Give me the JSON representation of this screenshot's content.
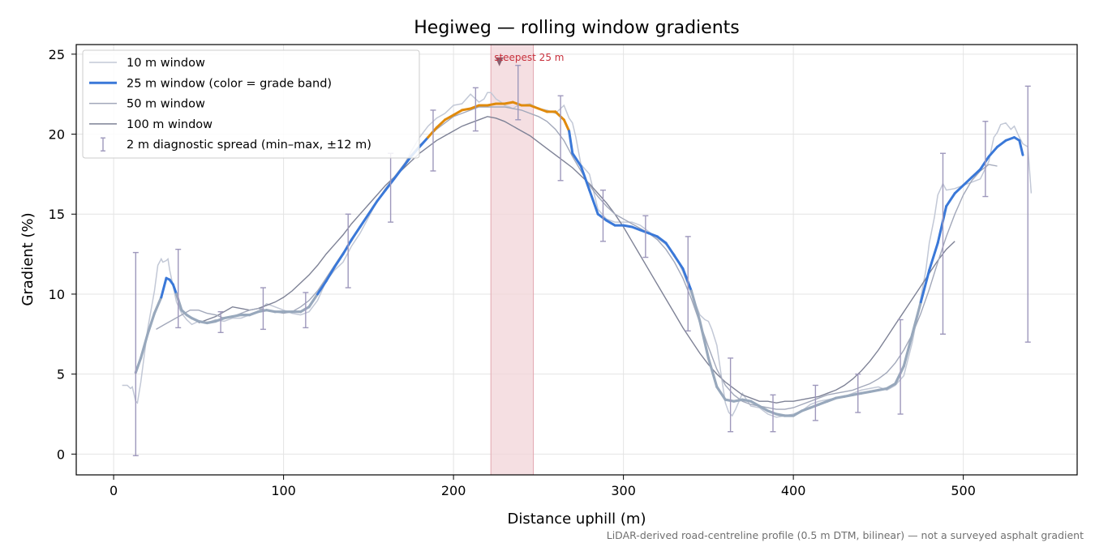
{
  "chart_data": {
    "type": "line",
    "title": "Hegiweg — rolling window gradients",
    "xlabel": "Distance uphill (m)",
    "ylabel": "Gradient (%)",
    "xlim": [
      -22,
      567
    ],
    "ylim": [
      -1.3,
      25.6
    ],
    "x_ticks": [
      0,
      100,
      200,
      300,
      400,
      500
    ],
    "y_ticks": [
      0,
      5,
      10,
      15,
      20,
      25
    ],
    "grid": true,
    "legend_placement": "upper-left",
    "footnote": "LiDAR-derived road-centreline profile (0.5 m DTM, bilinear) — not a surveyed asphalt gradient",
    "steepest_span": {
      "x0": 222,
      "x1": 247,
      "label": "steepest 25 m",
      "marker_x": 227,
      "marker_y": 24.5
    },
    "colors": {
      "w10": "#c2c8d6",
      "w25_steep": "#e08a0c",
      "w25_moderate": "#3a78d8",
      "w25_easy": "#98a8bc",
      "w50": "#a2a8ba",
      "w100": "#7e8296",
      "errorbar": "#9e98bc",
      "highlight": "#f2d4d8",
      "annotation": "#c8303c"
    },
    "series": [
      {
        "name": "10 m window",
        "x": [
          5,
          8,
          10,
          11,
          13,
          14,
          16,
          20,
          24,
          26,
          28,
          29,
          31,
          32,
          33,
          35,
          37,
          40,
          43,
          46,
          50,
          55,
          60,
          65,
          70,
          75,
          80,
          85,
          90,
          95,
          100,
          105,
          110,
          115,
          120,
          125,
          130,
          135,
          140,
          145,
          150,
          155,
          160,
          165,
          170,
          175,
          180,
          185,
          190,
          195,
          200,
          205,
          210,
          215,
          218,
          220,
          222,
          225,
          228,
          230,
          233,
          235,
          238,
          240,
          245,
          250,
          255,
          260,
          265,
          268,
          270,
          272,
          275,
          280,
          285,
          290,
          295,
          300,
          305,
          310,
          315,
          320,
          325,
          330,
          335,
          340,
          342,
          345,
          348,
          350,
          352,
          355,
          358,
          360,
          362,
          364,
          366,
          370,
          375,
          380,
          385,
          390,
          395,
          400,
          405,
          410,
          415,
          420,
          425,
          430,
          435,
          440,
          445,
          450,
          455,
          460,
          465,
          470,
          475,
          478,
          480,
          483,
          485,
          488,
          490,
          495,
          500,
          505,
          510,
          515,
          518,
          520,
          522,
          525,
          528,
          530,
          533,
          535,
          538,
          540
        ],
        "y": [
          4.3,
          4.3,
          4.1,
          4.2,
          3.3,
          3.2,
          4.5,
          7.8,
          10.2,
          11.8,
          12.2,
          12.0,
          12.1,
          12.2,
          11.5,
          10.5,
          9.5,
          8.8,
          8.4,
          8.1,
          8.3,
          8.2,
          8.4,
          8.3,
          8.5,
          8.5,
          8.7,
          8.9,
          9.4,
          9.2,
          9.0,
          8.8,
          8.7,
          8.9,
          9.6,
          10.8,
          11.5,
          12.0,
          13.0,
          13.8,
          14.8,
          15.8,
          16.6,
          17.2,
          17.9,
          18.9,
          19.8,
          20.5,
          21.0,
          21.3,
          21.8,
          21.9,
          22.5,
          22.0,
          22.2,
          22.6,
          22.6,
          22.2,
          22.0,
          21.8,
          21.7,
          21.6,
          21.8,
          21.8,
          21.9,
          21.6,
          21.5,
          21.3,
          21.8,
          21.0,
          20.7,
          19.8,
          18.1,
          17.5,
          15.3,
          14.7,
          14.5,
          14.5,
          14.5,
          14.3,
          13.9,
          13.5,
          13.1,
          12.5,
          11.4,
          10.0,
          9.5,
          8.7,
          8.4,
          8.3,
          7.8,
          6.8,
          4.6,
          3.2,
          2.6,
          2.4,
          2.8,
          3.8,
          3.0,
          2.9,
          2.5,
          2.3,
          2.4,
          2.5,
          2.7,
          3.1,
          3.3,
          3.4,
          3.5,
          3.6,
          3.8,
          4.0,
          4.1,
          4.2,
          4.0,
          4.3,
          4.9,
          7.0,
          9.8,
          11.5,
          13.2,
          14.8,
          16.2,
          16.9,
          16.5,
          16.6,
          16.8,
          17.0,
          17.2,
          18.3,
          19.8,
          20.1,
          20.6,
          20.7,
          20.3,
          20.5,
          19.8,
          19.4,
          19.2,
          16.3
        ]
      },
      {
        "name": "25 m window (color = grade band)",
        "x": [
          13,
          16,
          20,
          24,
          28,
          31,
          33,
          35,
          37,
          40,
          43,
          46,
          50,
          55,
          60,
          65,
          70,
          75,
          80,
          85,
          90,
          95,
          100,
          105,
          110,
          115,
          120,
          125,
          130,
          135,
          140,
          145,
          150,
          155,
          160,
          165,
          170,
          175,
          180,
          185,
          190,
          195,
          200,
          205,
          210,
          215,
          220,
          225,
          230,
          235,
          240,
          245,
          250,
          255,
          260,
          265,
          268,
          270,
          275,
          280,
          285,
          290,
          295,
          300,
          305,
          310,
          315,
          320,
          325,
          330,
          335,
          340,
          345,
          350,
          355,
          360,
          365,
          370,
          375,
          380,
          385,
          390,
          395,
          400,
          405,
          410,
          415,
          420,
          425,
          430,
          435,
          440,
          445,
          450,
          455,
          460,
          465,
          470,
          475,
          480,
          485,
          490,
          495,
          500,
          505,
          510,
          515,
          520,
          525,
          530,
          533,
          535
        ],
        "y": [
          5.1,
          6.0,
          7.5,
          8.8,
          9.8,
          11.0,
          10.9,
          10.6,
          10.0,
          9.0,
          8.7,
          8.5,
          8.3,
          8.2,
          8.3,
          8.5,
          8.6,
          8.7,
          8.7,
          8.9,
          9.0,
          8.9,
          8.9,
          8.9,
          8.9,
          9.2,
          10.0,
          10.8,
          11.7,
          12.5,
          13.4,
          14.2,
          15.0,
          15.8,
          16.5,
          17.2,
          17.9,
          18.6,
          19.2,
          19.8,
          20.4,
          20.9,
          21.2,
          21.5,
          21.6,
          21.8,
          21.8,
          21.9,
          21.9,
          22.0,
          21.8,
          21.8,
          21.6,
          21.4,
          21.4,
          20.9,
          20.2,
          18.8,
          18.0,
          16.5,
          15.0,
          14.6,
          14.3,
          14.3,
          14.2,
          14.0,
          13.8,
          13.6,
          13.2,
          12.4,
          11.6,
          10.2,
          8.3,
          6.0,
          4.2,
          3.4,
          3.3,
          3.4,
          3.3,
          3.0,
          2.7,
          2.5,
          2.4,
          2.4,
          2.7,
          2.9,
          3.1,
          3.3,
          3.5,
          3.6,
          3.7,
          3.8,
          3.9,
          4.0,
          4.1,
          4.4,
          5.5,
          7.5,
          9.5,
          11.5,
          13.2,
          15.5,
          16.3,
          16.8,
          17.3,
          17.8,
          18.6,
          19.2,
          19.6,
          19.8,
          19.6,
          18.7
        ],
        "bands": [
          {
            "from": 0,
            "to": 36,
            "band": "moderate"
          },
          {
            "from": 37,
            "to": 61,
            "band": "moderate"
          }
        ]
      },
      {
        "name": "50 m window",
        "x": [
          25,
          30,
          35,
          40,
          45,
          50,
          55,
          60,
          65,
          70,
          75,
          80,
          85,
          90,
          95,
          100,
          105,
          110,
          115,
          120,
          125,
          130,
          135,
          140,
          145,
          150,
          155,
          160,
          165,
          170,
          175,
          180,
          185,
          190,
          195,
          200,
          205,
          210,
          215,
          220,
          225,
          230,
          235,
          240,
          245,
          250,
          255,
          260,
          265,
          270,
          275,
          280,
          285,
          290,
          295,
          300,
          305,
          310,
          315,
          320,
          325,
          330,
          335,
          340,
          345,
          350,
          355,
          360,
          365,
          370,
          375,
          380,
          385,
          390,
          395,
          400,
          405,
          410,
          415,
          420,
          425,
          430,
          435,
          440,
          445,
          450,
          455,
          460,
          465,
          470,
          475,
          480,
          485,
          490,
          495,
          500,
          505,
          510,
          515,
          520
        ],
        "y": [
          7.8,
          8.1,
          8.4,
          8.7,
          9.0,
          9.0,
          8.8,
          8.7,
          8.5,
          8.6,
          8.8,
          9.0,
          9.1,
          9.0,
          8.9,
          8.8,
          8.9,
          9.2,
          9.6,
          10.2,
          11.0,
          11.8,
          12.6,
          13.3,
          14.2,
          15.0,
          15.8,
          16.6,
          17.3,
          18.0,
          18.7,
          19.3,
          19.8,
          20.3,
          20.7,
          21.1,
          21.3,
          21.5,
          21.7,
          21.7,
          21.7,
          21.7,
          21.6,
          21.5,
          21.3,
          21.1,
          20.8,
          20.3,
          19.6,
          18.6,
          17.7,
          16.8,
          16.1,
          15.5,
          15.0,
          14.7,
          14.4,
          14.1,
          13.8,
          13.4,
          12.8,
          12.0,
          11.0,
          9.7,
          8.2,
          6.7,
          5.3,
          4.3,
          3.7,
          3.3,
          3.1,
          3.0,
          2.9,
          2.8,
          2.8,
          2.9,
          3.1,
          3.3,
          3.5,
          3.7,
          3.8,
          3.9,
          4.0,
          4.2,
          4.4,
          4.7,
          5.1,
          5.7,
          6.5,
          7.5,
          8.8,
          10.3,
          12.0,
          13.6,
          15.0,
          16.2,
          17.1,
          17.7,
          18.1,
          18.0
        ]
      },
      {
        "name": "100 m window",
        "x": [
          50,
          55,
          60,
          65,
          70,
          75,
          80,
          85,
          90,
          95,
          100,
          105,
          110,
          115,
          120,
          125,
          130,
          135,
          140,
          145,
          150,
          155,
          160,
          165,
          170,
          175,
          180,
          185,
          190,
          195,
          200,
          205,
          210,
          215,
          220,
          225,
          230,
          235,
          240,
          245,
          250,
          255,
          260,
          265,
          270,
          275,
          280,
          285,
          290,
          295,
          300,
          305,
          310,
          315,
          320,
          325,
          330,
          335,
          340,
          345,
          350,
          355,
          360,
          365,
          370,
          375,
          380,
          385,
          390,
          395,
          400,
          405,
          410,
          415,
          420,
          425,
          430,
          435,
          440,
          445,
          450,
          455,
          460,
          465,
          470,
          475,
          480,
          485,
          490,
          495
        ],
        "y": [
          8.2,
          8.4,
          8.6,
          8.9,
          9.2,
          9.1,
          9.0,
          9.1,
          9.3,
          9.5,
          9.8,
          10.2,
          10.7,
          11.2,
          11.8,
          12.5,
          13.1,
          13.7,
          14.4,
          15.0,
          15.6,
          16.2,
          16.8,
          17.3,
          17.8,
          18.3,
          18.8,
          19.2,
          19.6,
          19.9,
          20.2,
          20.5,
          20.7,
          20.9,
          21.1,
          21.0,
          20.8,
          20.5,
          20.2,
          19.9,
          19.5,
          19.1,
          18.7,
          18.3,
          17.9,
          17.4,
          16.9,
          16.3,
          15.7,
          15.0,
          14.2,
          13.3,
          12.4,
          11.5,
          10.6,
          9.7,
          8.8,
          7.9,
          7.1,
          6.3,
          5.6,
          5.0,
          4.5,
          4.1,
          3.7,
          3.5,
          3.3,
          3.3,
          3.2,
          3.3,
          3.3,
          3.4,
          3.5,
          3.6,
          3.8,
          4.0,
          4.3,
          4.7,
          5.2,
          5.8,
          6.5,
          7.3,
          8.1,
          8.9,
          9.7,
          10.5,
          11.3,
          12.1,
          12.8,
          13.3
        ]
      }
    ],
    "errorbars": {
      "name": "2 m diagnostic spread (min–max, ±12 m)",
      "points": [
        {
          "x": 13,
          "lo": -0.1,
          "hi": 12.6
        },
        {
          "x": 38,
          "lo": 7.9,
          "hi": 12.8
        },
        {
          "x": 63,
          "lo": 7.6,
          "hi": 8.9
        },
        {
          "x": 88,
          "lo": 7.8,
          "hi": 10.4
        },
        {
          "x": 113,
          "lo": 7.9,
          "hi": 10.1
        },
        {
          "x": 138,
          "lo": 10.4,
          "hi": 15.0
        },
        {
          "x": 163,
          "lo": 14.5,
          "hi": 18.8
        },
        {
          "x": 188,
          "lo": 17.7,
          "hi": 21.5
        },
        {
          "x": 213,
          "lo": 20.2,
          "hi": 22.9
        },
        {
          "x": 238,
          "lo": 20.9,
          "hi": 24.3
        },
        {
          "x": 263,
          "lo": 17.1,
          "hi": 22.4
        },
        {
          "x": 288,
          "lo": 13.3,
          "hi": 16.5
        },
        {
          "x": 313,
          "lo": 12.3,
          "hi": 14.9
        },
        {
          "x": 338,
          "lo": 7.7,
          "hi": 13.6
        },
        {
          "x": 363,
          "lo": 1.4,
          "hi": 6.0
        },
        {
          "x": 388,
          "lo": 1.4,
          "hi": 3.7
        },
        {
          "x": 413,
          "lo": 2.1,
          "hi": 4.3
        },
        {
          "x": 438,
          "lo": 2.6,
          "hi": 5.0
        },
        {
          "x": 463,
          "lo": 2.5,
          "hi": 8.4
        },
        {
          "x": 488,
          "lo": 7.5,
          "hi": 18.8
        },
        {
          "x": 513,
          "lo": 16.1,
          "hi": 20.8
        },
        {
          "x": 538,
          "lo": 7.0,
          "hi": 23.0
        }
      ]
    }
  }
}
